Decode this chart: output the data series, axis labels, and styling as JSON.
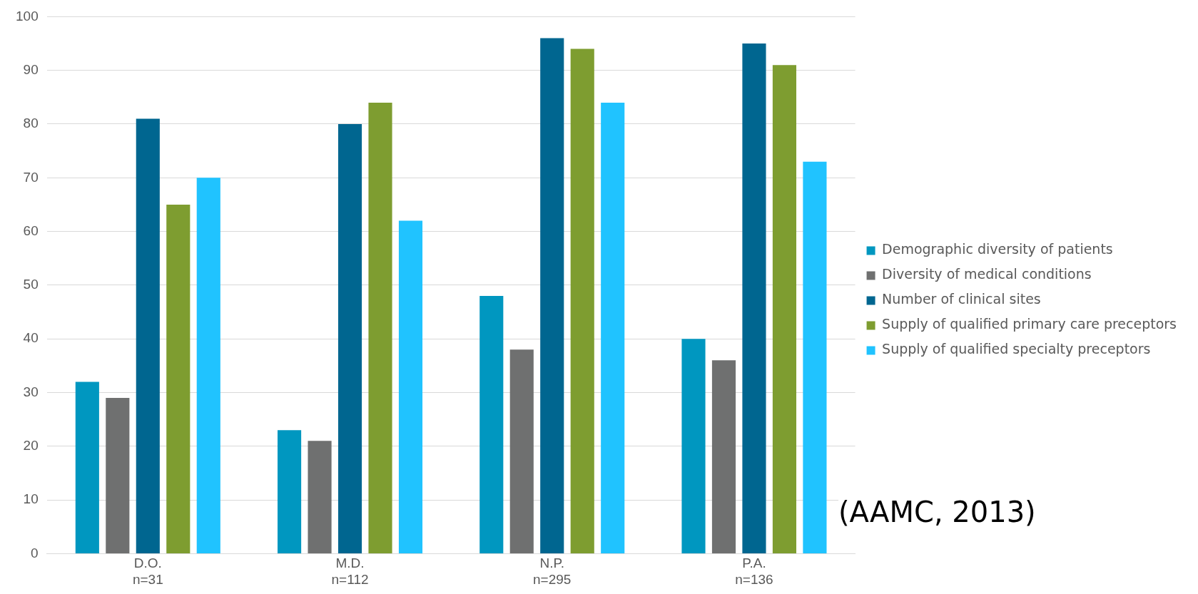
{
  "chart_data": {
    "type": "bar",
    "categories": [
      "D.O.\nn=31",
      "M.D.\nn=112",
      "N.P.\nn=295",
      "P.A.\nn=136"
    ],
    "series": [
      {
        "name": "Demographic diversity of patients",
        "color": "#0097c0",
        "values": [
          32,
          23,
          48,
          40
        ]
      },
      {
        "name": "Diversity of medical conditions",
        "color": "#6f7070",
        "values": [
          29,
          21,
          38,
          36
        ]
      },
      {
        "name": "Number of clinical sites",
        "color": "#006690",
        "values": [
          81,
          80,
          96,
          95
        ]
      },
      {
        "name": "Supply of qualified primary care preceptors",
        "color": "#7e9d30",
        "values": [
          65,
          84,
          94,
          91
        ]
      },
      {
        "name": "Supply of qualified specialty preceptors",
        "color": "#20c3ff",
        "values": [
          70,
          62,
          84,
          73
        ]
      }
    ],
    "ylim": [
      0,
      100
    ],
    "yticks": [
      0,
      10,
      20,
      30,
      40,
      50,
      60,
      70,
      80,
      90,
      100
    ],
    "grid": "y",
    "legend": "right",
    "annotations": [
      "(AAMC, 2013)"
    ]
  }
}
